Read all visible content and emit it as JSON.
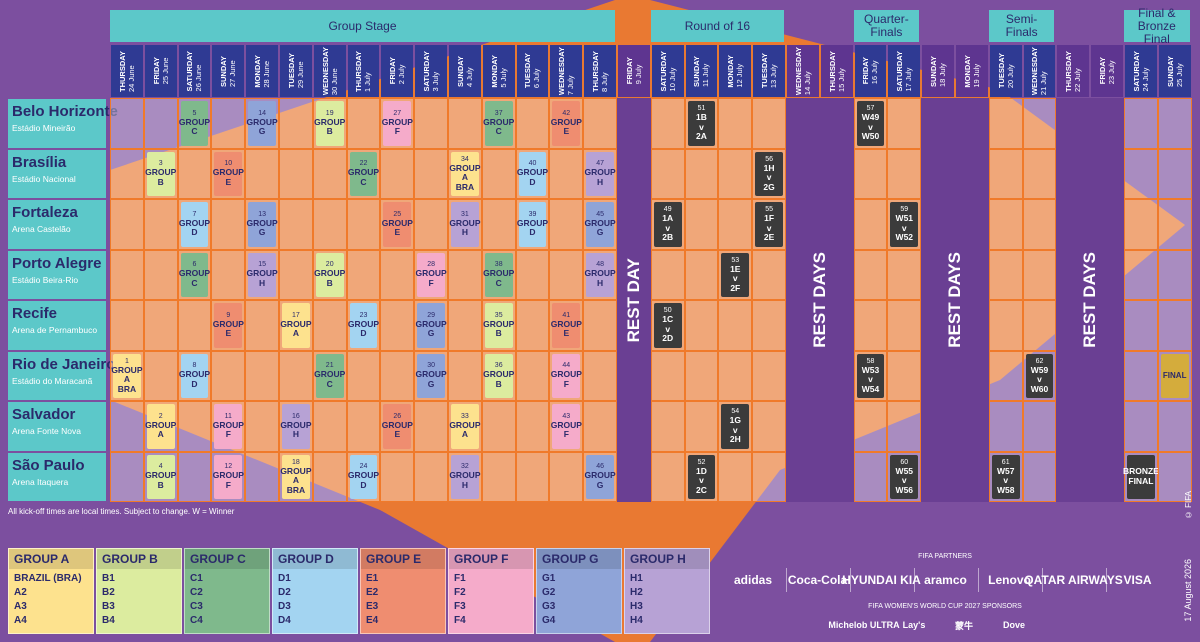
{
  "stages": [
    "Group Stage",
    "Round of 16",
    "Quarter-Finals",
    "Semi-Finals",
    "Final & Bronze Final"
  ],
  "dates": [
    {
      "weekday": "THURSDAY",
      "date": "24 June"
    },
    {
      "weekday": "FRIDAY",
      "date": "25 June"
    },
    {
      "weekday": "SATURDAY",
      "date": "26 June"
    },
    {
      "weekday": "SUNDAY",
      "date": "27 June"
    },
    {
      "weekday": "MONDAY",
      "date": "28 June"
    },
    {
      "weekday": "TUESDAY",
      "date": "29 June"
    },
    {
      "weekday": "WEDNESDAY",
      "date": "30 June"
    },
    {
      "weekday": "THURSDAY",
      "date": "1 July"
    },
    {
      "weekday": "FRIDAY",
      "date": "2 July"
    },
    {
      "weekday": "SATURDAY",
      "date": "3 July"
    },
    {
      "weekday": "SUNDAY",
      "date": "4 July"
    },
    {
      "weekday": "MONDAY",
      "date": "5 July"
    },
    {
      "weekday": "TUESDAY",
      "date": "6 July"
    },
    {
      "weekday": "WEDNESDAY",
      "date": "7 July"
    },
    {
      "weekday": "THURSDAY",
      "date": "8 July"
    },
    {
      "weekday": "FRIDAY",
      "date": "9 July"
    },
    {
      "weekday": "SATURDAY",
      "date": "10 July"
    },
    {
      "weekday": "SUNDAY",
      "date": "11 July"
    },
    {
      "weekday": "MONDAY",
      "date": "12 July"
    },
    {
      "weekday": "TUESDAY",
      "date": "13 July"
    },
    {
      "weekday": "WEDNESDAY",
      "date": "14 July"
    },
    {
      "weekday": "THURSDAY",
      "date": "15 July"
    },
    {
      "weekday": "FRIDAY",
      "date": "16 July"
    },
    {
      "weekday": "SATURDAY",
      "date": "17 July"
    },
    {
      "weekday": "SUNDAY",
      "date": "18 July"
    },
    {
      "weekday": "MONDAY",
      "date": "19 July"
    },
    {
      "weekday": "TUESDAY",
      "date": "20 July"
    },
    {
      "weekday": "WEDNESDAY",
      "date": "21 July"
    },
    {
      "weekday": "THURSDAY",
      "date": "22 July"
    },
    {
      "weekday": "FRIDAY",
      "date": "23 July"
    },
    {
      "weekday": "SATURDAY",
      "date": "24 July"
    },
    {
      "weekday": "SUNDAY",
      "date": "25 July"
    }
  ],
  "rest_labels": [
    "REST DAY",
    "REST DAYS",
    "REST DAYS",
    "REST DAYS"
  ],
  "venues": [
    {
      "city": "Belo Horizonte",
      "stadium": "Estádio Mineirão",
      "cells": [
        null,
        null,
        {
          "number": "5",
          "lines": [
            "GROUP",
            "C"
          ],
          "color": "#7fb98c"
        },
        null,
        {
          "number": "14",
          "lines": [
            "GROUP",
            "G"
          ],
          "color": "#8fa4d8"
        },
        null,
        {
          "number": "19",
          "lines": [
            "GROUP",
            "B"
          ],
          "color": "#dcec9f"
        },
        null,
        {
          "number": "27",
          "lines": [
            "GROUP",
            "F"
          ],
          "color": "#f5abca"
        },
        null,
        null,
        {
          "number": "37",
          "lines": [
            "GROUP",
            "C"
          ],
          "color": "#7fb98c"
        },
        null,
        {
          "number": "42",
          "lines": [
            "GROUP",
            "E"
          ],
          "color": "#ef8d70"
        },
        null,
        null,
        null,
        {
          "number": "51",
          "lines": [
            "1B",
            "v",
            "2A"
          ],
          "color": "#3b3b3b"
        },
        null,
        null,
        null,
        null,
        {
          "number": "57",
          "lines": [
            "W49",
            "v",
            "W50"
          ],
          "color": "#3b3b3b"
        },
        null,
        null,
        null,
        null,
        null,
        null,
        null,
        null,
        null
      ]
    },
    {
      "city": "Brasília",
      "stadium": "Estádio Nacional",
      "cells": [
        null,
        {
          "number": "3",
          "lines": [
            "GROUP",
            "B"
          ],
          "color": "#dcec9f"
        },
        null,
        {
          "number": "10",
          "lines": [
            "GROUP",
            "E"
          ],
          "color": "#ef8d70"
        },
        null,
        null,
        null,
        {
          "number": "22",
          "lines": [
            "GROUP",
            "C"
          ],
          "color": "#7fb98c"
        },
        null,
        null,
        {
          "number": "34",
          "lines": [
            "GROUP",
            "A",
            "BRA"
          ],
          "color": "#fde28e"
        },
        null,
        {
          "number": "40",
          "lines": [
            "GROUP",
            "D"
          ],
          "color": "#a3d4f1"
        },
        null,
        {
          "number": "47",
          "lines": [
            "GROUP",
            "H"
          ],
          "color": "#b7a2d5"
        },
        null,
        null,
        null,
        null,
        {
          "number": "56",
          "lines": [
            "1H",
            "v",
            "2G"
          ],
          "color": "#3b3b3b"
        },
        null,
        null,
        null,
        null,
        null,
        null,
        null,
        null,
        null,
        null,
        null,
        null
      ]
    },
    {
      "city": "Fortaleza",
      "stadium": "Arena Castelão",
      "cells": [
        null,
        null,
        {
          "number": "7",
          "lines": [
            "GROUP",
            "D"
          ],
          "color": "#a3d4f1"
        },
        null,
        {
          "number": "13",
          "lines": [
            "GROUP",
            "G"
          ],
          "color": "#8fa4d8"
        },
        null,
        null,
        null,
        {
          "number": "25",
          "lines": [
            "GROUP",
            "E"
          ],
          "color": "#ef8d70"
        },
        null,
        {
          "number": "31",
          "lines": [
            "GROUP",
            "H"
          ],
          "color": "#b7a2d5"
        },
        null,
        {
          "number": "39",
          "lines": [
            "GROUP",
            "D"
          ],
          "color": "#a3d4f1"
        },
        null,
        {
          "number": "45",
          "lines": [
            "GROUP",
            "G"
          ],
          "color": "#8fa4d8"
        },
        null,
        {
          "number": "49",
          "lines": [
            "1A",
            "v",
            "2B"
          ],
          "color": "#3b3b3b"
        },
        null,
        null,
        {
          "number": "55",
          "lines": [
            "1F",
            "v",
            "2E"
          ],
          "color": "#3b3b3b"
        },
        null,
        null,
        null,
        {
          "number": "59",
          "lines": [
            "W51",
            "v",
            "W52"
          ],
          "color": "#3b3b3b"
        },
        null,
        null,
        null,
        null,
        null,
        null,
        null,
        null
      ]
    },
    {
      "city": "Porto Alegre",
      "stadium": "Estádio Beira-Rio",
      "cells": [
        null,
        null,
        {
          "number": "6",
          "lines": [
            "GROUP",
            "C"
          ],
          "color": "#7fb98c"
        },
        null,
        {
          "number": "15",
          "lines": [
            "GROUP",
            "H"
          ],
          "color": "#b7a2d5"
        },
        null,
        {
          "number": "20",
          "lines": [
            "GROUP",
            "B"
          ],
          "color": "#dcec9f"
        },
        null,
        null,
        {
          "number": "28",
          "lines": [
            "GROUP",
            "F"
          ],
          "color": "#f5abca"
        },
        null,
        {
          "number": "38",
          "lines": [
            "GROUP",
            "C"
          ],
          "color": "#7fb98c"
        },
        null,
        null,
        {
          "number": "48",
          "lines": [
            "GROUP",
            "H"
          ],
          "color": "#b7a2d5"
        },
        null,
        null,
        null,
        {
          "number": "53",
          "lines": [
            "1E",
            "v",
            "2F"
          ],
          "color": "#3b3b3b"
        },
        null,
        null,
        null,
        null,
        null,
        null,
        null,
        null,
        null,
        null,
        null,
        null,
        null
      ]
    },
    {
      "city": "Recife",
      "stadium": "Arena de Pernambuco",
      "cells": [
        null,
        null,
        null,
        {
          "number": "9",
          "lines": [
            "GROUP",
            "E"
          ],
          "color": "#ef8d70"
        },
        null,
        {
          "number": "17",
          "lines": [
            "GROUP",
            "A"
          ],
          "color": "#fde28e"
        },
        null,
        {
          "number": "23",
          "lines": [
            "GROUP",
            "D"
          ],
          "color": "#a3d4f1"
        },
        null,
        {
          "number": "29",
          "lines": [
            "GROUP",
            "G"
          ],
          "color": "#8fa4d8"
        },
        null,
        {
          "number": "35",
          "lines": [
            "GROUP",
            "B"
          ],
          "color": "#dcec9f"
        },
        null,
        {
          "number": "41",
          "lines": [
            "GROUP",
            "E"
          ],
          "color": "#ef8d70"
        },
        null,
        null,
        {
          "number": "50",
          "lines": [
            "1C",
            "v",
            "2D"
          ],
          "color": "#3b3b3b"
        },
        null,
        null,
        null,
        null,
        null,
        null,
        null,
        null,
        null,
        null,
        null,
        null,
        null,
        null,
        null
      ]
    },
    {
      "city": "Rio de Janeiro",
      "stadium": "Estádio do Maracanã",
      "cells": [
        {
          "number": "1",
          "lines": [
            "GROUP",
            "A",
            "BRA"
          ],
          "color": "#fde28e"
        },
        null,
        {
          "number": "8",
          "lines": [
            "GROUP",
            "D"
          ],
          "color": "#a3d4f1"
        },
        null,
        null,
        null,
        {
          "number": "21",
          "lines": [
            "GROUP",
            "C"
          ],
          "color": "#7fb98c"
        },
        null,
        null,
        {
          "number": "30",
          "lines": [
            "GROUP",
            "G"
          ],
          "color": "#8fa4d8"
        },
        null,
        {
          "number": "36",
          "lines": [
            "GROUP",
            "B"
          ],
          "color": "#dcec9f"
        },
        null,
        {
          "number": "44",
          "lines": [
            "GROUP",
            "F"
          ],
          "color": "#f5abca"
        },
        null,
        null,
        null,
        null,
        null,
        null,
        null,
        null,
        {
          "number": "58",
          "lines": [
            "W53",
            "v",
            "W54"
          ],
          "color": "#3b3b3b"
        },
        null,
        null,
        null,
        null,
        {
          "number": "62",
          "lines": [
            "W59",
            "v",
            "W60"
          ],
          "color": "#3b3b3b"
        },
        null,
        null,
        null,
        {
          "lines": [
            "FINAL"
          ],
          "color": "#d4ac3c"
        }
      ]
    },
    {
      "city": "Salvador",
      "stadium": "Arena Fonte Nova",
      "cells": [
        null,
        {
          "number": "2",
          "lines": [
            "GROUP",
            "A"
          ],
          "color": "#fde28e"
        },
        null,
        {
          "number": "11",
          "lines": [
            "GROUP",
            "F"
          ],
          "color": "#f5abca"
        },
        null,
        {
          "number": "16",
          "lines": [
            "GROUP",
            "H"
          ],
          "color": "#b7a2d5"
        },
        null,
        null,
        {
          "number": "26",
          "lines": [
            "GROUP",
            "E"
          ],
          "color": "#ef8d70"
        },
        null,
        {
          "number": "33",
          "lines": [
            "GROUP",
            "A"
          ],
          "color": "#fde28e"
        },
        null,
        null,
        {
          "number": "43",
          "lines": [
            "GROUP",
            "F"
          ],
          "color": "#f5abca"
        },
        null,
        null,
        null,
        null,
        {
          "number": "54",
          "lines": [
            "1G",
            "v",
            "2H"
          ],
          "color": "#3b3b3b"
        },
        null,
        null,
        null,
        null,
        null,
        null,
        null,
        null,
        null,
        null,
        null,
        null,
        null
      ]
    },
    {
      "city": "São Paulo",
      "stadium": "Arena Itaquera",
      "cells": [
        null,
        {
          "number": "4",
          "lines": [
            "GROUP",
            "B"
          ],
          "color": "#dcec9f"
        },
        null,
        {
          "number": "12",
          "lines": [
            "GROUP",
            "F"
          ],
          "color": "#f5abca"
        },
        null,
        {
          "number": "18",
          "lines": [
            "GROUP",
            "A",
            "BRA"
          ],
          "color": "#fde28e"
        },
        null,
        {
          "number": "24",
          "lines": [
            "GROUP",
            "D"
          ],
          "color": "#a3d4f1"
        },
        null,
        null,
        {
          "number": "32",
          "lines": [
            "GROUP",
            "H"
          ],
          "color": "#b7a2d5"
        },
        null,
        null,
        null,
        {
          "number": "46",
          "lines": [
            "GROUP",
            "G"
          ],
          "color": "#8fa4d8"
        },
        null,
        null,
        {
          "number": "52",
          "lines": [
            "1D",
            "v",
            "2C"
          ],
          "color": "#3b3b3b"
        },
        null,
        null,
        null,
        null,
        null,
        {
          "number": "60",
          "lines": [
            "W55",
            "v",
            "W56"
          ],
          "color": "#3b3b3b"
        },
        null,
        null,
        {
          "number": "61",
          "lines": [
            "W57",
            "v",
            "W58"
          ],
          "color": "#3b3b3b"
        },
        null,
        null,
        null,
        {
          "lines": [
            "BRONZE",
            "FINAL"
          ],
          "color": "#3b3b3b"
        },
        null
      ]
    }
  ],
  "note": "All kick-off times are local times. Subject to change. W = Winner",
  "groups": [
    {
      "name": "GROUP A",
      "color": "#fde28e",
      "teams": [
        "BRAZIL (BRA)",
        "A2",
        "A3",
        "A4"
      ]
    },
    {
      "name": "GROUP B",
      "color": "#dcec9f",
      "teams": [
        "B1",
        "B2",
        "B3",
        "B4"
      ]
    },
    {
      "name": "GROUP C",
      "color": "#7fb98c",
      "teams": [
        "C1",
        "C2",
        "C3",
        "C4"
      ]
    },
    {
      "name": "GROUP D",
      "color": "#a3d4f1",
      "teams": [
        "D1",
        "D2",
        "D3",
        "D4"
      ]
    },
    {
      "name": "GROUP E",
      "color": "#ef8d70",
      "teams": [
        "E1",
        "E2",
        "E3",
        "E4"
      ]
    },
    {
      "name": "GROUP F",
      "color": "#f5abca",
      "teams": [
        "F1",
        "F2",
        "F3",
        "F4"
      ]
    },
    {
      "name": "GROUP G",
      "color": "#8fa4d8",
      "teams": [
        "G1",
        "G2",
        "G3",
        "G4"
      ]
    },
    {
      "name": "GROUP H",
      "color": "#b7a2d5",
      "teams": [
        "H1",
        "H2",
        "H3",
        "H4"
      ]
    }
  ],
  "sponsors": {
    "partners_title": "FIFA PARTNERS",
    "partners": [
      "adidas",
      "Coca-Cola",
      "HYUNDAI KIA",
      "aramco",
      "Lenovo",
      "QATAR AIRWAYS",
      "VISA"
    ],
    "sponsors_title": "FIFA WOMEN'S WORLD CUP 2027 SPONSORS",
    "sponsors": [
      "Michelob ULTRA",
      "Lay's",
      "蒙牛",
      "Dove"
    ]
  },
  "date_stamp": "17 August 2026",
  "copyright": "© FIFA"
}
